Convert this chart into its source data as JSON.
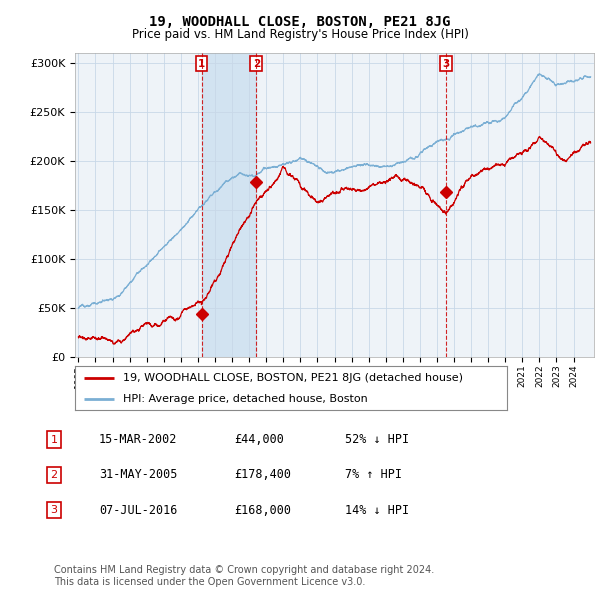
{
  "title": "19, WOODHALL CLOSE, BOSTON, PE21 8JG",
  "subtitle": "Price paid vs. HM Land Registry's House Price Index (HPI)",
  "ylim": [
    0,
    310000
  ],
  "yticks": [
    0,
    50000,
    100000,
    150000,
    200000,
    250000,
    300000
  ],
  "ytick_labels": [
    "£0",
    "£50K",
    "£100K",
    "£150K",
    "£200K",
    "£250K",
    "£300K"
  ],
  "hpi_color": "#7bafd4",
  "price_color": "#cc0000",
  "marker_box_color": "#cc0000",
  "grid_color": "#c8d8e8",
  "background_color": "#ffffff",
  "plot_bg_color": "#eef3f8",
  "shade_color": "#cce0f0",
  "transactions": [
    {
      "date_num": 2002.21,
      "price": 44000,
      "label": "1"
    },
    {
      "date_num": 2005.42,
      "price": 178400,
      "label": "2"
    },
    {
      "date_num": 2016.52,
      "price": 168000,
      "label": "3"
    }
  ],
  "table_rows": [
    {
      "num": "1",
      "date": "15-MAR-2002",
      "price": "£44,000",
      "hpi": "52% ↓ HPI"
    },
    {
      "num": "2",
      "date": "31-MAY-2005",
      "price": "£178,400",
      "hpi": "7% ↑ HPI"
    },
    {
      "num": "3",
      "date": "07-JUL-2016",
      "price": "£168,000",
      "hpi": "14% ↓ HPI"
    }
  ],
  "legend_entries": [
    "19, WOODHALL CLOSE, BOSTON, PE21 8JG (detached house)",
    "HPI: Average price, detached house, Boston"
  ],
  "footer": "Contains HM Land Registry data © Crown copyright and database right 2024.\nThis data is licensed under the Open Government Licence v3.0.",
  "xmin": 1994.8,
  "xmax": 2025.2,
  "xtick_start": 1995,
  "xtick_end": 2024
}
